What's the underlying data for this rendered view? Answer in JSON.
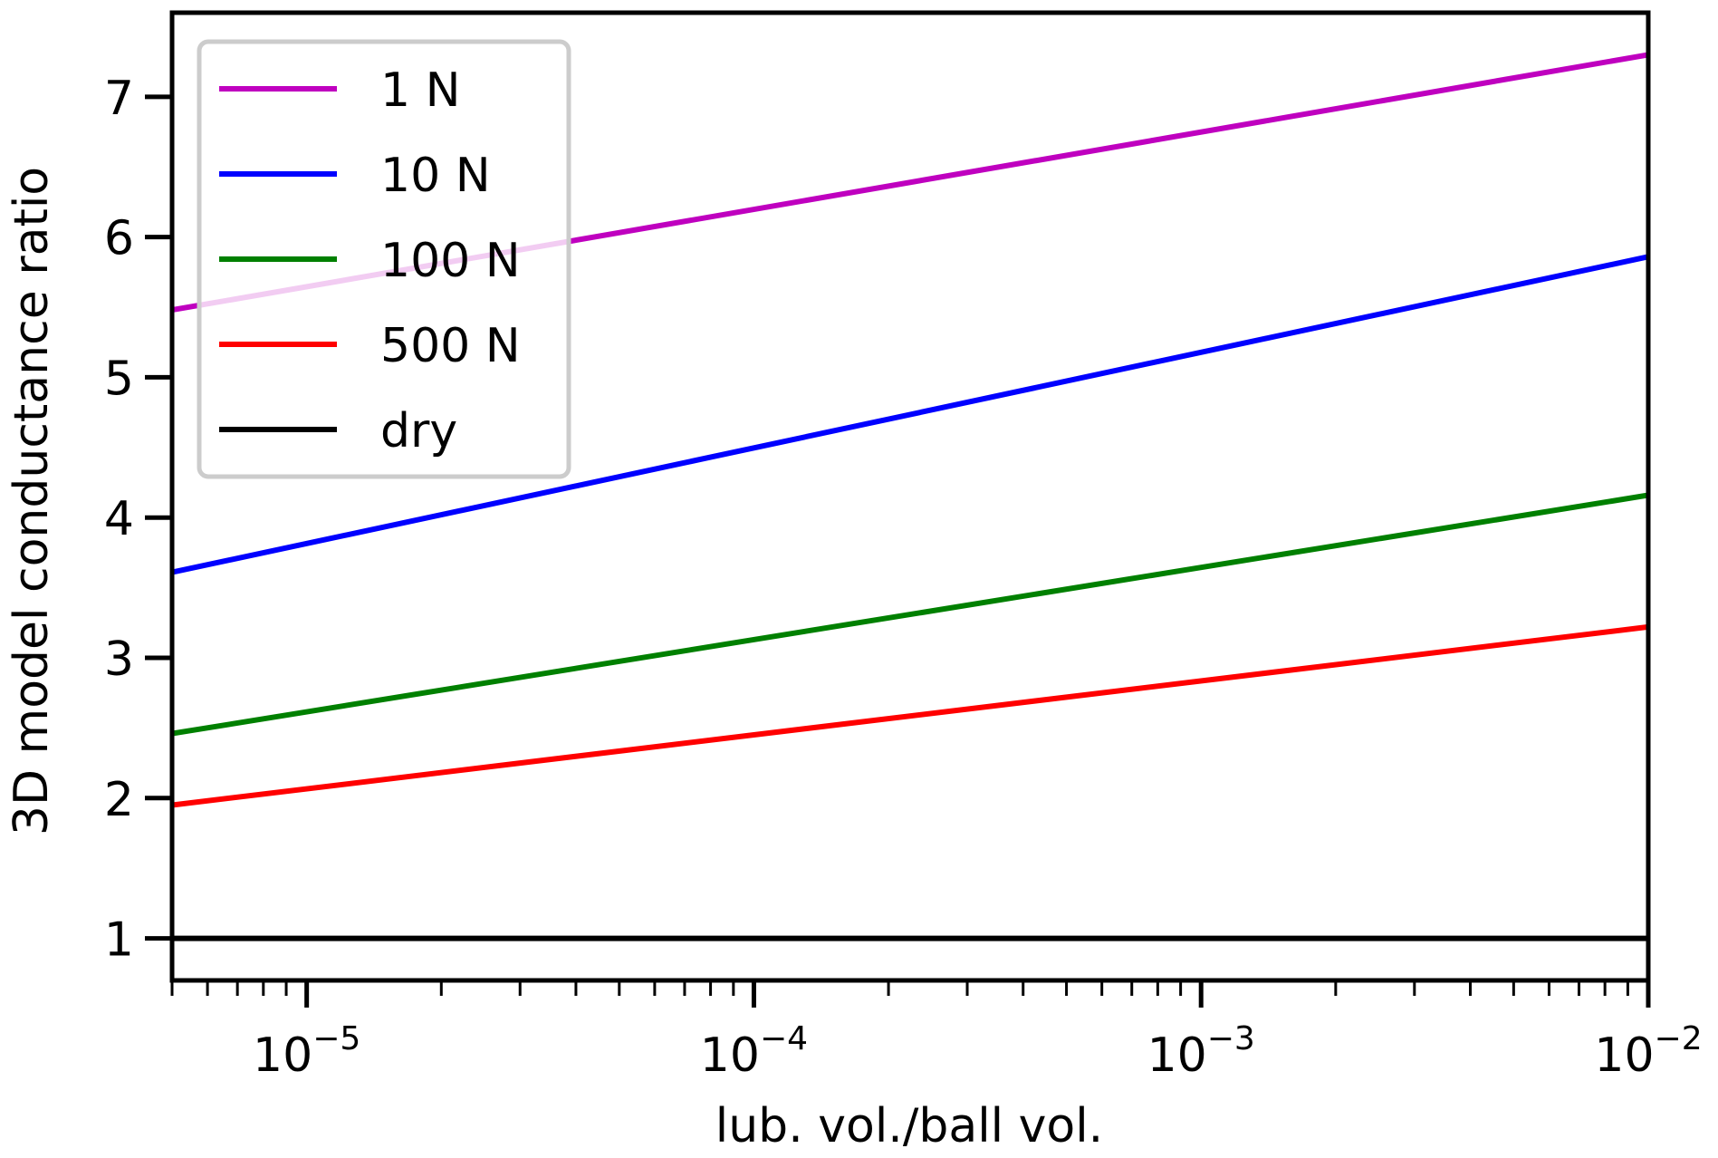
{
  "chart_data": {
    "type": "line",
    "title": "",
    "xlabel": "lub. vol./ball vol.",
    "ylabel": "3D model conductance ratio",
    "xscale": "log",
    "xlim": [
      5e-06,
      0.01
    ],
    "ylim": [
      0.7,
      7.6
    ],
    "grid": false,
    "legend_position": "top-left",
    "x_ticks": [
      {
        "value": 1e-05,
        "base": "10",
        "exp": "−5"
      },
      {
        "value": 0.0001,
        "base": "10",
        "exp": "−4"
      },
      {
        "value": 0.001,
        "base": "10",
        "exp": "−3"
      },
      {
        "value": 0.01,
        "base": "10",
        "exp": "−2"
      }
    ],
    "y_ticks": [
      1,
      2,
      3,
      4,
      5,
      6,
      7
    ],
    "x": [
      5e-06,
      0.01
    ],
    "series": [
      {
        "name": "1 N",
        "color": "#bf00bf",
        "values": [
          5.48,
          7.3
        ]
      },
      {
        "name": "10 N",
        "color": "#0000ff",
        "values": [
          3.61,
          5.86
        ]
      },
      {
        "name": "100 N",
        "color": "#008000",
        "values": [
          2.46,
          4.16
        ]
      },
      {
        "name": "500 N",
        "color": "#ff0000",
        "values": [
          1.95,
          3.22
        ]
      },
      {
        "name": "dry",
        "color": "#000000",
        "values": [
          1.0,
          1.0
        ]
      }
    ]
  }
}
